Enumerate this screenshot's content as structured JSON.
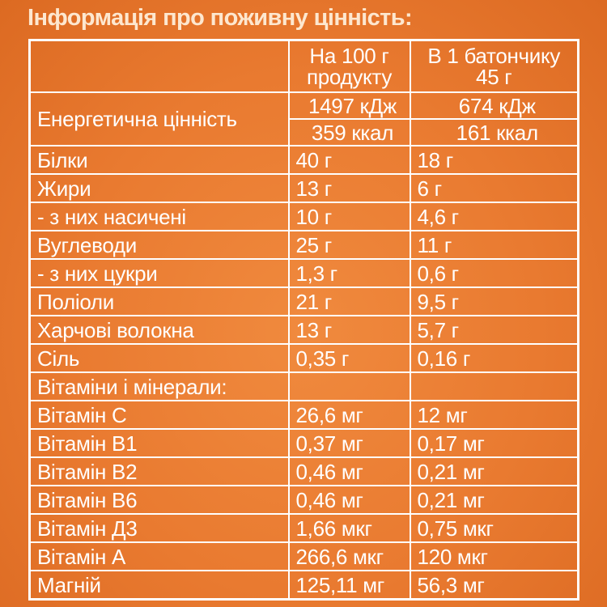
{
  "title": "Інформація про поживну цінність:",
  "header": {
    "col2_line1": "На 100 г",
    "col2_line2": "продукту",
    "col3_line1": "В 1 батончику",
    "col3_line2": "45 г"
  },
  "energy": {
    "label": "Енергетична цінність",
    "kj_100": "1497 кДж",
    "kj_bar": "674 кДж",
    "kcal_100": "359 ккал",
    "kcal_bar": "161 ккал"
  },
  "rows": [
    {
      "label": "Білки",
      "per100": "40 г",
      "perbar": "18 г"
    },
    {
      "label": "Жири",
      "per100": "13 г",
      "perbar": "6 г"
    },
    {
      "label": "- з них насичені",
      "per100": "10 г",
      "perbar": "4,6 г"
    },
    {
      "label": "Вуглеводи",
      "per100": "25 г",
      "perbar": "11 г"
    },
    {
      "label": "- з них цукри",
      "per100": "1,3 г",
      "perbar": "0,6 г"
    },
    {
      "label": "Поліоли",
      "per100": "21 г",
      "perbar": "9,5 г"
    },
    {
      "label": "Харчові волокна",
      "per100": "13 г",
      "perbar": "5,7 г"
    },
    {
      "label": "Сіль",
      "per100": "0,35 г",
      "perbar": "0,16 г"
    }
  ],
  "vitamins_heading": "Вітаміни і мінерали:",
  "vitamins": [
    {
      "label": "Вітамін С",
      "per100": "26,6 мг",
      "perbar": "12 мг"
    },
    {
      "label": "Вітамін В1",
      "per100": "0,37 мг",
      "perbar": "0,17 мг"
    },
    {
      "label": "Вітамін В2",
      "per100": "0,46 мг",
      "perbar": "0,21 мг"
    },
    {
      "label": "Вітамін В6",
      "per100": "0,46 мг",
      "perbar": "0,21 мг"
    },
    {
      "label": "Вітамін Д3",
      "per100": "1,66 мкг",
      "perbar": "0,75 мкг"
    },
    {
      "label": "Вітамін А",
      "per100": "266,6 мкг",
      "perbar": "120 мкг"
    },
    {
      "label": "Магній",
      "per100": "125,11 мг",
      "perbar": "56,3 мг"
    }
  ],
  "colors": {
    "background": "#e97a30",
    "text": "#ffffff",
    "title": "#fde7cf"
  }
}
